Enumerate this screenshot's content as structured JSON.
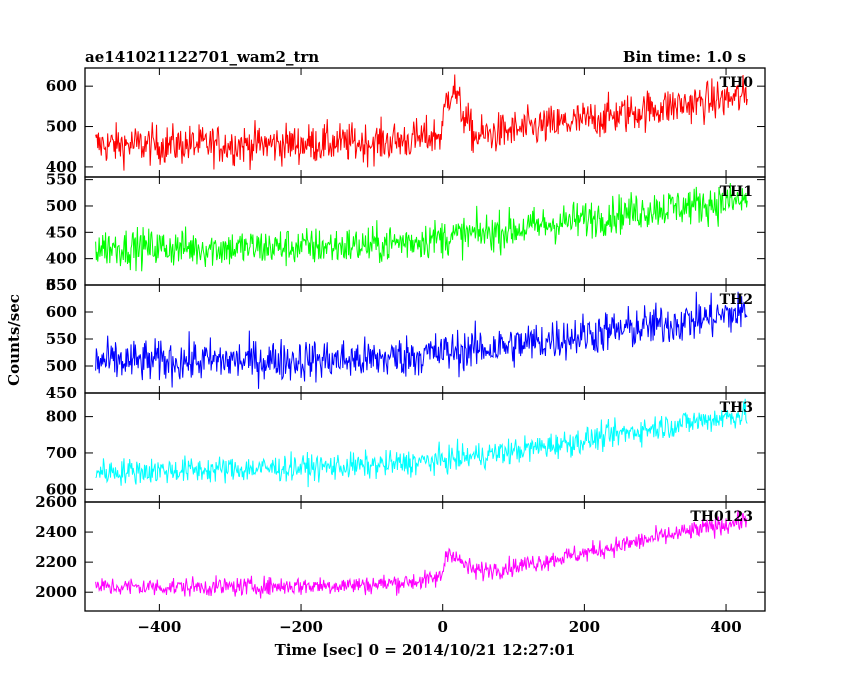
{
  "header": {
    "left_title": "ae141021122701_wam2_trn",
    "right_title": "Bin time: 1.0 s"
  },
  "axes": {
    "xlabel": "Time [sec] 0 = 2014/10/21 12:27:01",
    "ylabel": "Counts/sec",
    "xlim": [
      -505,
      455
    ],
    "xticks": [
      -400,
      -200,
      0,
      200,
      400
    ],
    "xtick_labels": [
      "−400",
      "−200",
      "0",
      "200",
      "400"
    ]
  },
  "chart_data": [
    {
      "type": "line",
      "series": [
        {
          "name": "TH0",
          "color": "#ff0000"
        }
      ],
      "ylim": [
        375,
        645
      ],
      "yticks": [
        400,
        500,
        600
      ],
      "ytick_labels": [
        "400",
        "500",
        "600"
      ],
      "x_range": [
        -490,
        430
      ],
      "trend": [
        [
          -490,
          455
        ],
        [
          -300,
          455
        ],
        [
          -100,
          460
        ],
        [
          -40,
          468
        ],
        [
          -2,
          480
        ],
        [
          5,
          565
        ],
        [
          15,
          600
        ],
        [
          25,
          545
        ],
        [
          45,
          475
        ],
        [
          100,
          490
        ],
        [
          200,
          515
        ],
        [
          300,
          545
        ],
        [
          430,
          575
        ]
      ],
      "noise": 35
    },
    {
      "type": "line",
      "series": [
        {
          "name": "TH1",
          "color": "#00ff00"
        }
      ],
      "ylim": [
        350,
        555
      ],
      "yticks": [
        350,
        400,
        450,
        500,
        550
      ],
      "ytick_labels": [
        "350",
        "400",
        "450",
        "500",
        "550"
      ],
      "x_range": [
        -490,
        430
      ],
      "trend": [
        [
          -490,
          422
        ],
        [
          -300,
          420
        ],
        [
          -100,
          425
        ],
        [
          0,
          440
        ],
        [
          100,
          455
        ],
        [
          200,
          475
        ],
        [
          300,
          495
        ],
        [
          430,
          510
        ]
      ],
      "noise": 26
    },
    {
      "type": "line",
      "series": [
        {
          "name": "TH2",
          "color": "#0000ff"
        }
      ],
      "ylim": [
        450,
        650
      ],
      "yticks": [
        450,
        500,
        550,
        600,
        650
      ],
      "ytick_labels": [
        "450",
        "500",
        "550",
        "600",
        "650"
      ],
      "x_range": [
        -490,
        430
      ],
      "trend": [
        [
          -490,
          508
        ],
        [
          -300,
          510
        ],
        [
          -100,
          512
        ],
        [
          0,
          525
        ],
        [
          100,
          538
        ],
        [
          200,
          558
        ],
        [
          300,
          575
        ],
        [
          430,
          600
        ]
      ],
      "noise": 28
    },
    {
      "type": "line",
      "series": [
        {
          "name": "TH3",
          "color": "#00ffff"
        }
      ],
      "ylim": [
        565,
        865
      ],
      "yticks": [
        600,
        700,
        800
      ],
      "ytick_labels": [
        "600",
        "700",
        "800"
      ],
      "x_range": [
        -490,
        430
      ],
      "trend": [
        [
          -490,
          648
        ],
        [
          -300,
          655
        ],
        [
          -100,
          665
        ],
        [
          0,
          680
        ],
        [
          100,
          705
        ],
        [
          200,
          735
        ],
        [
          300,
          770
        ],
        [
          430,
          808
        ]
      ],
      "noise": 26
    },
    {
      "type": "line",
      "series": [
        {
          "name": "TH0123",
          "color": "#ff00ff"
        }
      ],
      "ylim": [
        1875,
        2600
      ],
      "yticks": [
        2000,
        2200,
        2400,
        2600
      ],
      "ytick_labels": [
        "2000",
        "2200",
        "2400",
        "2600"
      ],
      "x_range": [
        -490,
        430
      ],
      "trend": [
        [
          -490,
          2035
        ],
        [
          -300,
          2035
        ],
        [
          -100,
          2050
        ],
        [
          -20,
          2080
        ],
        [
          -2,
          2100
        ],
        [
          5,
          2250
        ],
        [
          12,
          2275
        ],
        [
          25,
          2200
        ],
        [
          45,
          2140
        ],
        [
          100,
          2170
        ],
        [
          200,
          2260
        ],
        [
          300,
          2360
        ],
        [
          430,
          2480
        ]
      ],
      "noise": 45
    }
  ]
}
